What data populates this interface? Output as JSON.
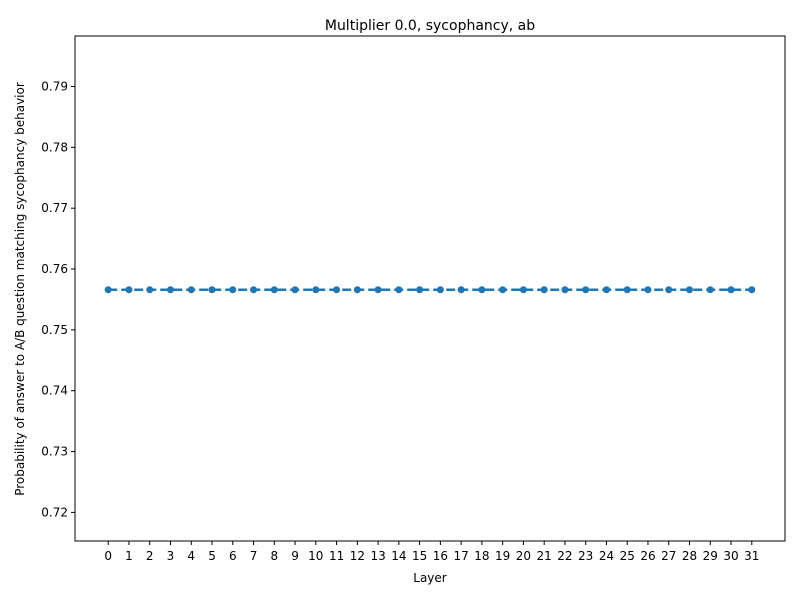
{
  "chart_data": {
    "type": "line",
    "title": "Multiplier 0.0, sycophancy, ab",
    "xlabel": "Layer",
    "ylabel": "Probability of answer to A/B question matching sycophancy behavior",
    "x": [
      0,
      1,
      2,
      3,
      4,
      5,
      6,
      7,
      8,
      9,
      10,
      11,
      12,
      13,
      14,
      15,
      16,
      17,
      18,
      19,
      20,
      21,
      22,
      23,
      24,
      25,
      26,
      27,
      28,
      29,
      30,
      31
    ],
    "series": [
      {
        "values": [
          0.7566,
          0.7566,
          0.7566,
          0.7566,
          0.7566,
          0.7566,
          0.7566,
          0.7566,
          0.7566,
          0.7566,
          0.7566,
          0.7566,
          0.7566,
          0.7566,
          0.7566,
          0.7566,
          0.7566,
          0.7566,
          0.7566,
          0.7566,
          0.7566,
          0.7566,
          0.7566,
          0.7566,
          0.7566,
          0.7566,
          0.7566,
          0.7566,
          0.7566,
          0.7566,
          0.7566,
          0.7566
        ],
        "color": "#1f77b4",
        "marker": "circle",
        "line_style": "dashed"
      }
    ],
    "ylim": [
      0.7153,
      0.7983
    ],
    "yticks": [
      "0.72",
      "0.73",
      "0.74",
      "0.75",
      "0.76",
      "0.77",
      "0.78",
      "0.79"
    ],
    "xticks": [
      "0",
      "1",
      "2",
      "3",
      "4",
      "5",
      "6",
      "7",
      "8",
      "9",
      "10",
      "11",
      "12",
      "13",
      "14",
      "15",
      "16",
      "17",
      "18",
      "19",
      "20",
      "21",
      "22",
      "23",
      "24",
      "25",
      "26",
      "27",
      "28",
      "29",
      "30",
      "31"
    ],
    "grid": false,
    "legend": "none"
  }
}
